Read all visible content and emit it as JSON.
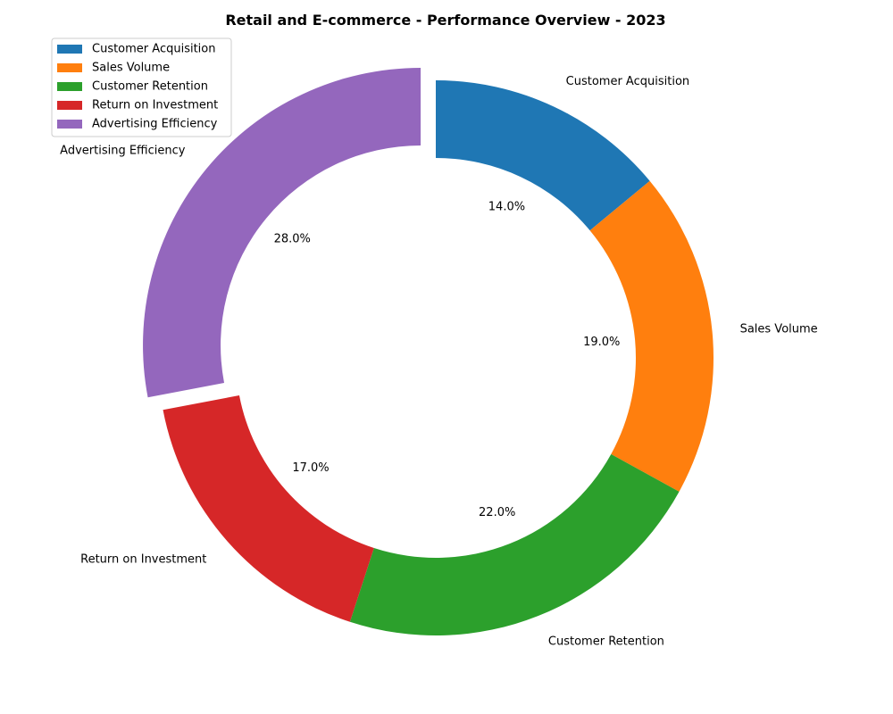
{
  "chart_data": {
    "type": "pie",
    "variant": "donut",
    "title": "Retail and E-commerce - Performance Overview - 2023",
    "categories": [
      "Customer Acquisition",
      "Sales Volume",
      "Customer Retention",
      "Return on Investment",
      "Advertising Efficiency"
    ],
    "values": [
      14.0,
      19.0,
      22.0,
      17.0,
      28.0
    ],
    "percent_labels": [
      "14.0%",
      "19.0%",
      "22.0%",
      "17.0%",
      "28.0%"
    ],
    "colors": [
      "#1f77b4",
      "#ff7f0e",
      "#2ca02c",
      "#d62728",
      "#9467bd"
    ],
    "exploded": [
      false,
      false,
      false,
      false,
      true
    ],
    "start_angle": "12 o'clock, clockwise",
    "legend": {
      "placement": "upper-left",
      "entries": [
        "Customer Acquisition",
        "Sales Volume",
        "Customer Retention",
        "Return on Investment",
        "Advertising Efficiency"
      ]
    }
  }
}
